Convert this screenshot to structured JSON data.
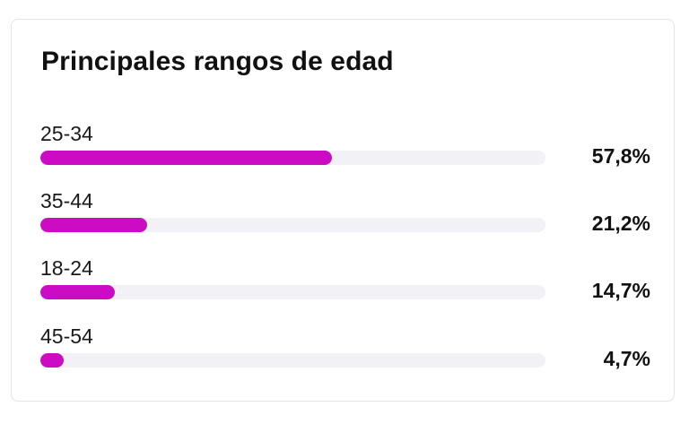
{
  "widget": {
    "title": "Principales rangos de edad",
    "bar_color": "#cc0cc4",
    "track_color": "#f2f2f6",
    "rows": [
      {
        "label": "25-34",
        "value": "57,8%",
        "fill_fraction": 0.578
      },
      {
        "label": "35-44",
        "value": "21,2%",
        "fill_fraction": 0.212
      },
      {
        "label": "18-24",
        "value": "14,7%",
        "fill_fraction": 0.147
      },
      {
        "label": "45-54",
        "value": "4,7%",
        "fill_fraction": 0.047
      }
    ]
  }
}
